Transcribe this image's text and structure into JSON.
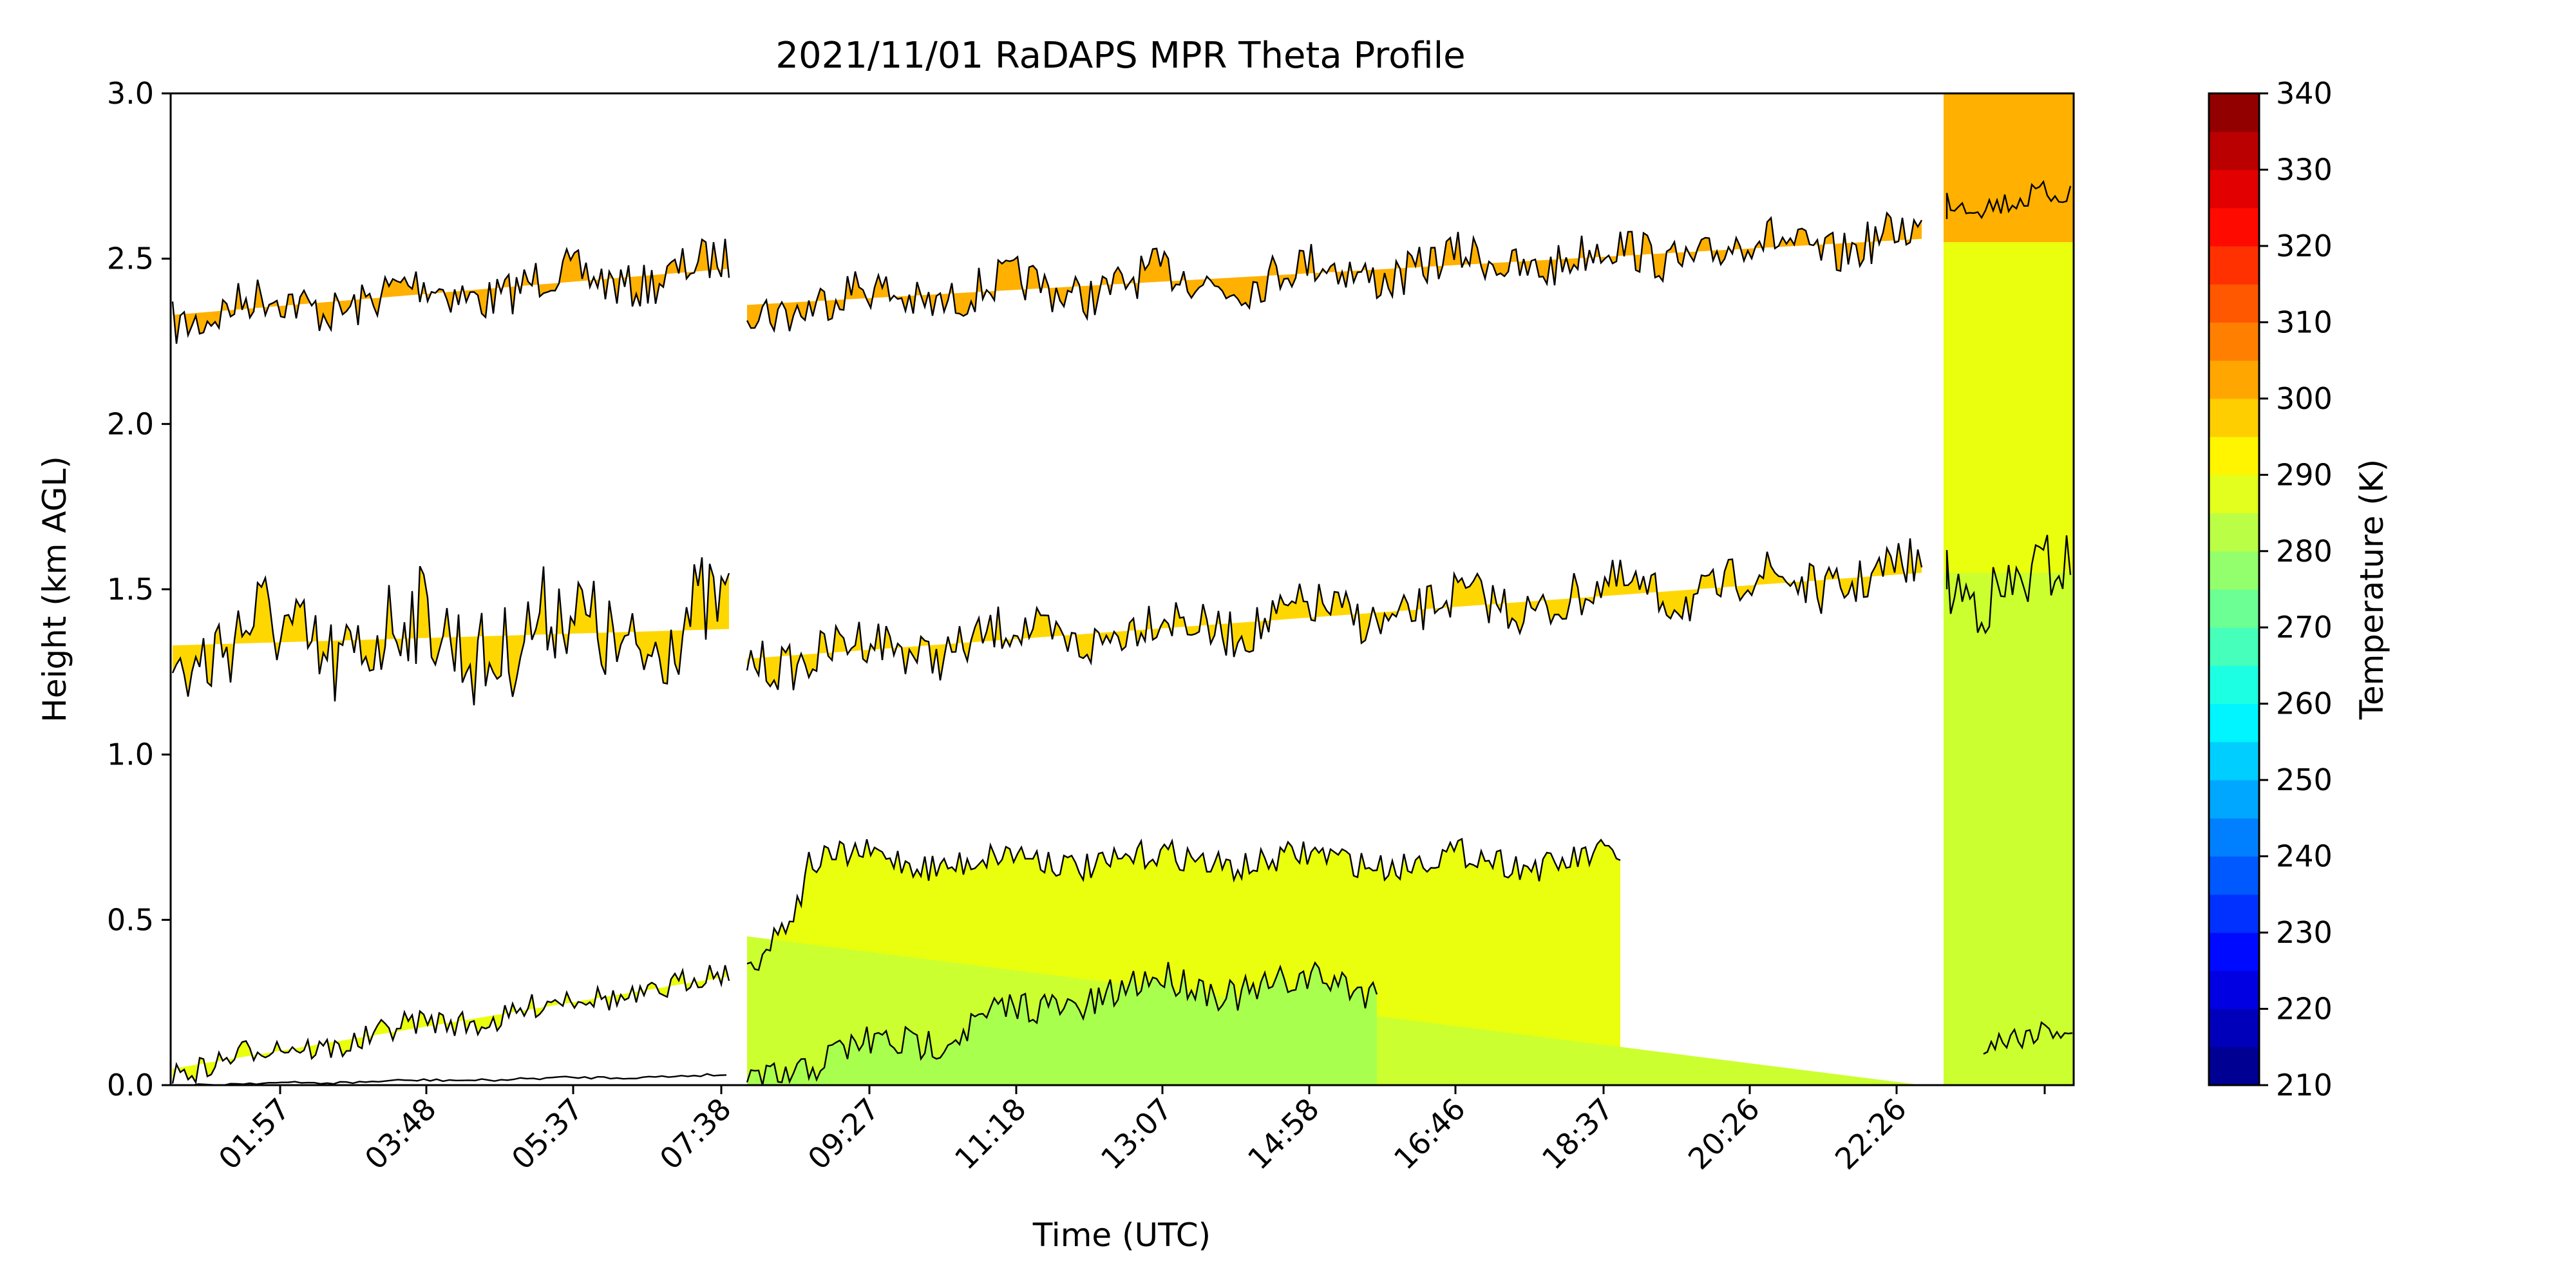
{
  "chart_data": {
    "type": "heatmap",
    "title": "2021/11/01 RaDAPS MPR Theta Profile",
    "xlabel": "Time (UTC)",
    "ylabel": "Height (km AGL)",
    "x_ticks": [
      "01:57",
      "03:48",
      "05:37",
      "07:38",
      "09:27",
      "11:18",
      "13:07",
      "14:58",
      "16:46",
      "18:37",
      "20:26",
      "22:26"
    ],
    "y_ticks": [
      "0.0",
      "0.5",
      "1.0",
      "1.5",
      "2.0",
      "2.5",
      "3.0"
    ],
    "ylim": [
      0,
      3
    ],
    "colorbar": {
      "label": "Temperature (K)",
      "ticks": [
        "210",
        "220",
        "230",
        "240",
        "250",
        "260",
        "270",
        "280",
        "290",
        "300",
        "310",
        "320",
        "330",
        "340"
      ],
      "range": [
        210,
        340
      ],
      "colormap": "jet"
    },
    "contours_km": [
      {
        "name": "",
        "temperature_k": 292,
        "start_height": 0.05,
        "end_height": 0.33,
        "note_segment": "00:20-07:50"
      },
      {
        "name": "",
        "temperature_k": 290,
        "start_height": 0.45,
        "end_height": 0.0,
        "note_segment": "08:10-22:50"
      },
      {
        "name": "",
        "temperature_k": 297,
        "start_height": 1.33,
        "end_height": 1.55
      },
      {
        "name": "",
        "temperature_k": 300,
        "start_height": 2.33,
        "end_height": 2.56
      }
    ],
    "bands": [
      {
        "from_k": 285,
        "to_k": 290,
        "color": "#a9ff4e"
      },
      {
        "from_k": 290,
        "to_k": 295,
        "color": "#cbff2f"
      },
      {
        "from_k": 295,
        "to_k": 300,
        "color": "#eaff0d"
      },
      {
        "from_k": 300,
        "to_k": 305,
        "color": "#ffd700"
      },
      {
        "from_k": 305,
        "to_k": 310,
        "color": "#ffb000"
      }
    ]
  }
}
